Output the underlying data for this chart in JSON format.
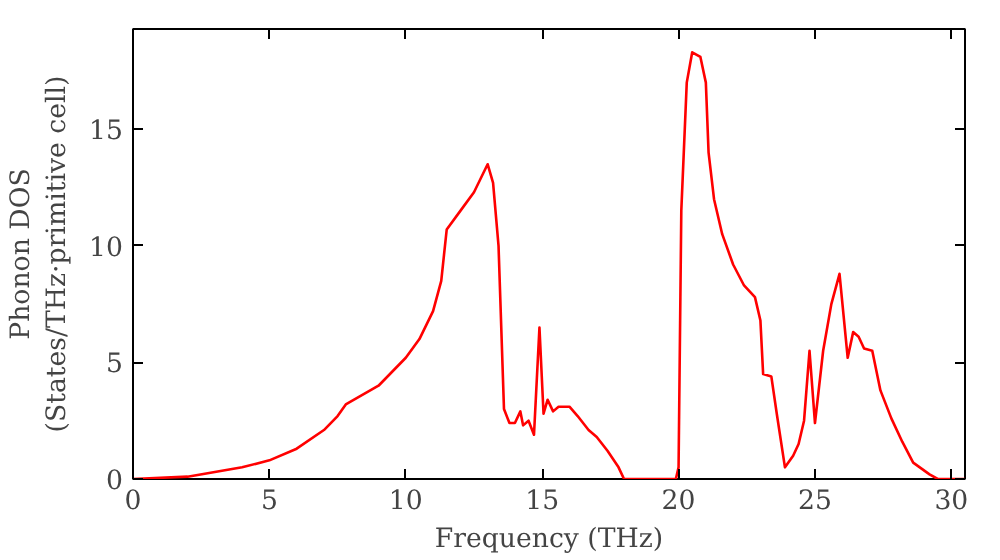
{
  "chart_data": {
    "type": "line",
    "xlabel": "Frequency (THz)",
    "ylabel": "Phonon DOS\n(States/THz·primitive cell)",
    "x": [
      0,
      2,
      4,
      5,
      6,
      7,
      7.5,
      7.8,
      9,
      10,
      10.5,
      11,
      11.3,
      11.5,
      12,
      12.5,
      13,
      13.2,
      13.4,
      13.6,
      13.8,
      14,
      14.2,
      14.3,
      14.5,
      14.7,
      14.9,
      15.05,
      15.2,
      15.4,
      15.6,
      16,
      16.3,
      16.7,
      17,
      17.4,
      17.8,
      18,
      19.9,
      20,
      20.1,
      20.3,
      20.5,
      20.8,
      21,
      21.1,
      21.3,
      21.6,
      22,
      22.4,
      22.8,
      23,
      23.1,
      23.4,
      23.6,
      23.9,
      24.2,
      24.4,
      24.6,
      24.8,
      25,
      25.3,
      25.6,
      25.9,
      26.2,
      26.4,
      26.6,
      26.8,
      27.1,
      27.4,
      27.8,
      28.2,
      28.6,
      29.2,
      29.5,
      30.5
    ],
    "series": [
      {
        "color": "#ff0000",
        "values": [
          0,
          0.1,
          0.5,
          0.8,
          1.3,
          2.1,
          2.7,
          3.2,
          4,
          5.2,
          6,
          7.2,
          8.5,
          10.7,
          11.5,
          12.3,
          13.5,
          12.7,
          10,
          3,
          2.4,
          2.4,
          2.9,
          2.3,
          2.5,
          1.9,
          6.5,
          2.8,
          3.4,
          2.9,
          3.1,
          3.1,
          2.7,
          2.1,
          1.8,
          1.2,
          0.5,
          0,
          0,
          0.5,
          11.5,
          17,
          18.3,
          18.1,
          17,
          14,
          12,
          10.5,
          9.2,
          8.3,
          7.8,
          6.8,
          4.5,
          4.4,
          2.8,
          0.5,
          1,
          1.5,
          2.5,
          5.5,
          2.4,
          5.5,
          7.5,
          8.8,
          5.2,
          6.3,
          6.1,
          5.6,
          5.5,
          3.8,
          2.6,
          1.6,
          0.7,
          0.2,
          0,
          0
        ]
      }
    ],
    "xlim": [
      0,
      30.5
    ],
    "ylim": [
      0,
      19.3
    ],
    "xticks": [
      0,
      5,
      10,
      15,
      20,
      25,
      30
    ],
    "yticks": [
      0,
      5,
      10,
      15
    ],
    "grid": false
  }
}
